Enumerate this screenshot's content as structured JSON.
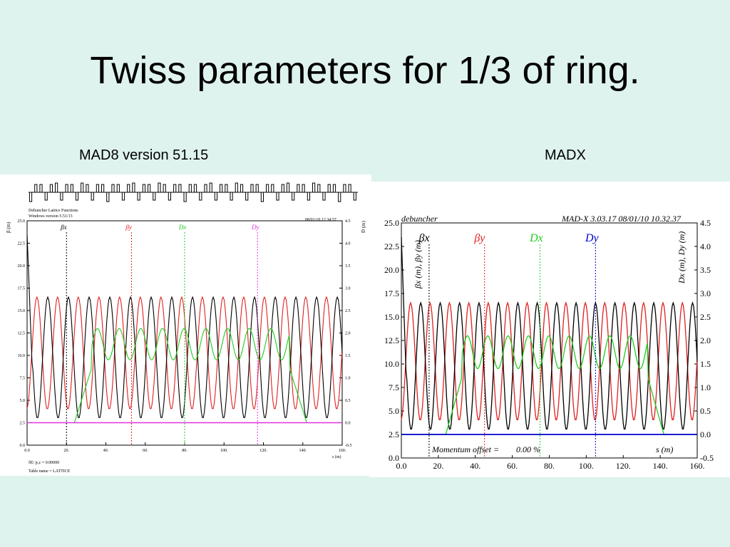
{
  "title": "Twiss parameters for 1/3 of ring.",
  "subtitle_left": "MAD8 version 51.15",
  "subtitle_right": "MADX",
  "colors": {
    "bx": "#000000",
    "by": "#e02020",
    "dx": "#22cc22",
    "dy_left": "#dd33dd",
    "dy_right": "#0000cc",
    "bg": "#dff3ee"
  },
  "chart_data": [
    {
      "type": "line",
      "panel": "left",
      "header_left": "Debuncher Lattice Functions",
      "header_left2": "Windows version 5.51/13",
      "header_right": "08/01/10 12.34.57",
      "ylabel": "β (m)",
      "y2label": "D (m)",
      "xlabel": "s (m)",
      "xlim": [
        0,
        160
      ],
      "ylim": [
        0,
        25
      ],
      "y2lim": [
        -0.5,
        4.5
      ],
      "xticks": [
        "0.0",
        "20.",
        "40.",
        "60.",
        "80.",
        "100.",
        "120.",
        "140.",
        "160."
      ],
      "yticks": [
        "0.0",
        "2.5",
        "5.0",
        "7.5",
        "10.0",
        "12.5",
        "15.0",
        "17.5",
        "20.0",
        "22.5",
        "25.0"
      ],
      "y2ticks": [
        "-0.5",
        "0.0",
        "0.5",
        "1.0",
        "1.5",
        "2.0",
        "2.5",
        "3.0",
        "3.5",
        "4.0",
        "4.5"
      ],
      "legend": [
        "βx",
        "βy",
        "Dx",
        "Dy"
      ],
      "footer1": "δE/ p₀c  =  0.00000",
      "footer2": "Table name = LATTICE",
      "series": [
        {
          "name": "βx",
          "values_summary": "oscillates between ~3 and ~16.5 m, starts ~23.5 m at s=0"
        },
        {
          "name": "βy",
          "values_summary": "oscillates between ~4 and ~16.5 m"
        },
        {
          "name": "Dx",
          "values_summary": "0 m at s<25 and s>140; ~1.5-2.2 m in arc"
        },
        {
          "name": "Dy",
          "values_summary": "0.0 m everywhere"
        }
      ]
    },
    {
      "type": "line",
      "panel": "right",
      "header_left": "debuncher",
      "header_right": "MAD-X 3.03.17  08/01/10 10.32.37",
      "ylabel": "βx (m), βy (m)",
      "y2label": "Dx (m), Dy (m)",
      "xlabel": "s (m)",
      "footer": "Momentum offset =",
      "footer_value": "0.00 %",
      "xlim": [
        0,
        160
      ],
      "ylim": [
        0,
        25
      ],
      "y2lim": [
        -0.5,
        4.5
      ],
      "xticks": [
        "0.0",
        "20.",
        "40.",
        "60.",
        "80.",
        "100.",
        "120.",
        "140.",
        "160."
      ],
      "yticks": [
        "0.0",
        "2.5",
        "5.0",
        "7.5",
        "10.0",
        "12.5",
        "15.0",
        "17.5",
        "20.0",
        "22.5",
        "25.0"
      ],
      "y2ticks": [
        "-0.5",
        "0.0",
        "0.5",
        "1.0",
        "1.5",
        "2.0",
        "2.5",
        "3.0",
        "3.5",
        "4.0",
        "4.5"
      ],
      "legend": [
        "βx",
        "βy",
        "Dx",
        "Dy"
      ],
      "series": [
        {
          "name": "βx",
          "values_summary": "oscillates between ~3 and ~16 m"
        },
        {
          "name": "βy",
          "values_summary": "oscillates between ~4 and ~17 m"
        },
        {
          "name": "Dx",
          "values_summary": "0 m at s<28 and s>140; ~1.3-2.1 m in arc"
        },
        {
          "name": "Dy",
          "values_summary": "0.0 m everywhere"
        }
      ]
    }
  ]
}
